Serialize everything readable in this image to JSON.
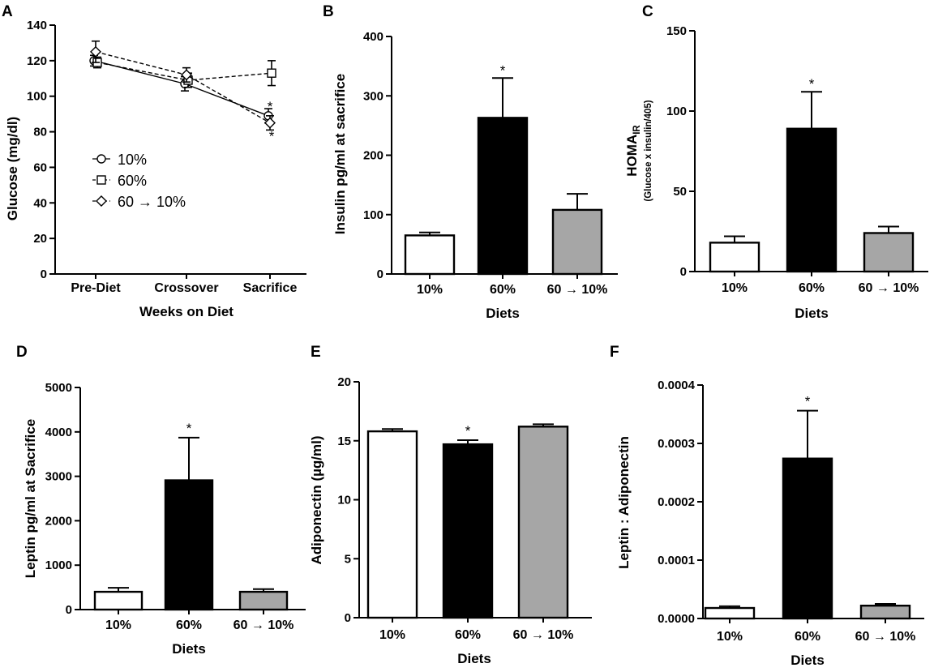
{
  "figure": {
    "panels": [
      {
        "label": "A",
        "kind": "line",
        "ylabel": "Glucose (mg/dl)",
        "xlabel": "Weeks on Diet",
        "ylim": [
          0,
          140
        ],
        "yticks": [
          "0",
          "20",
          "40",
          "60",
          "80",
          "100",
          "120",
          "140"
        ],
        "categories": [
          "Pre-Diet",
          "Crossover",
          "Sacrifice"
        ],
        "annotations": [
          "*",
          "*"
        ]
      },
      {
        "label": "B",
        "kind": "bar",
        "ylabel": "Insulin pg/ml at sacrifice",
        "xlabel": "Diets",
        "ylim": [
          0,
          400
        ],
        "yticks": [
          "0",
          "100",
          "200",
          "300",
          "400"
        ],
        "categories": [
          "10%",
          "60%",
          "60 → 10%"
        ],
        "annotation": "*"
      },
      {
        "label": "C",
        "kind": "bar",
        "ylabel_main": "HOMA",
        "ylabel_sub": "IR",
        "ylabel_paren": "(Glucose x insulin/405)",
        "xlabel": "Diets",
        "ylim": [
          0,
          150
        ],
        "yticks": [
          "0",
          "50",
          "100",
          "150"
        ],
        "categories": [
          "10%",
          "60%",
          "60 → 10%"
        ],
        "annotation": "*"
      },
      {
        "label": "D",
        "kind": "bar",
        "ylabel": "Leptin pg/ml at Sacrifice",
        "xlabel": "Diets",
        "ylim": [
          0,
          5000
        ],
        "yticks": [
          "0",
          "1000",
          "2000",
          "3000",
          "4000",
          "5000"
        ],
        "categories": [
          "10%",
          "60%",
          "60 → 10%"
        ],
        "annotation": "*"
      },
      {
        "label": "E",
        "kind": "bar",
        "ylabel": "Adiponectin (µg/ml)",
        "xlabel": "Diets",
        "ylim": [
          0,
          20
        ],
        "yticks": [
          "0",
          "5",
          "10",
          "15",
          "20"
        ],
        "categories": [
          "10%",
          "60%",
          "60 → 10%"
        ],
        "annotation": "*"
      },
      {
        "label": "F",
        "kind": "bar",
        "ylabel": "Leptin : Adiponectin",
        "xlabel": "Diets",
        "ylim": [
          0,
          0.0004
        ],
        "yticks": [
          "0.0000",
          "0.0001",
          "0.0002",
          "0.0003",
          "0.0004"
        ],
        "categories": [
          "10%",
          "60%",
          "60 → 10%"
        ],
        "annotation": "*"
      }
    ]
  },
  "chart_data": [
    {
      "type": "line",
      "panel": "A",
      "title": "",
      "xlabel": "Weeks on Diet",
      "ylabel": "Glucose (mg/dl)",
      "ylim": [
        0,
        140
      ],
      "categories": [
        "Pre-Diet",
        "Crossover",
        "Sacrifice"
      ],
      "series": [
        {
          "name": "10%",
          "marker": "circle",
          "style": "solid",
          "values": [
            120,
            107,
            89
          ],
          "errors": [
            3,
            4,
            4
          ]
        },
        {
          "name": "60%",
          "marker": "square",
          "style": "dashed",
          "values": [
            119,
            109,
            113
          ],
          "errors": [
            3,
            4,
            7
          ]
        },
        {
          "name": "60 → 10%",
          "marker": "diamond",
          "style": "dashed",
          "values": [
            125,
            112,
            85
          ],
          "errors": [
            6,
            4,
            4
          ]
        }
      ],
      "annotations": [
        {
          "text": "*",
          "category": "Sacrifice",
          "series": "10%"
        },
        {
          "text": "*",
          "category": "Sacrifice",
          "series": "60 → 10%"
        }
      ],
      "legend_position": "center-left"
    },
    {
      "type": "bar",
      "panel": "B",
      "xlabel": "Diets",
      "ylabel": "Insulin pg/ml at sacrifice",
      "ylim": [
        0,
        400
      ],
      "categories": [
        "10%",
        "60%",
        "60 → 10%"
      ],
      "values": [
        65,
        263,
        108
      ],
      "errors": [
        5,
        67,
        27
      ],
      "colors": [
        "#ffffff",
        "#000000",
        "#a6a6a6"
      ],
      "annotations": [
        {
          "text": "*",
          "category": "60%"
        }
      ]
    },
    {
      "type": "bar",
      "panel": "C",
      "xlabel": "Diets",
      "ylabel": "HOMA IR (Glucose x insulin/405)",
      "ylim": [
        0,
        150
      ],
      "categories": [
        "10%",
        "60%",
        "60 → 10%"
      ],
      "values": [
        18,
        89,
        24
      ],
      "errors": [
        4,
        23,
        4
      ],
      "colors": [
        "#ffffff",
        "#000000",
        "#a6a6a6"
      ],
      "annotations": [
        {
          "text": "*",
          "category": "60%"
        }
      ]
    },
    {
      "type": "bar",
      "panel": "D",
      "xlabel": "Diets",
      "ylabel": "Leptin pg/ml at Sacrifice",
      "ylim": [
        0,
        5000
      ],
      "categories": [
        "10%",
        "60%",
        "60 → 10%"
      ],
      "values": [
        400,
        2910,
        400
      ],
      "errors": [
        90,
        960,
        60
      ],
      "colors": [
        "#ffffff",
        "#000000",
        "#a6a6a6"
      ],
      "annotations": [
        {
          "text": "*",
          "category": "60%"
        }
      ]
    },
    {
      "type": "bar",
      "panel": "E",
      "xlabel": "Diets",
      "ylabel": "Adiponectin (µg/ml)",
      "ylim": [
        0,
        20
      ],
      "categories": [
        "10%",
        "60%",
        "60 → 10%"
      ],
      "values": [
        15.8,
        14.7,
        16.2
      ],
      "errors": [
        0.2,
        0.35,
        0.2
      ],
      "colors": [
        "#ffffff",
        "#000000",
        "#a6a6a6"
      ],
      "annotations": [
        {
          "text": "*",
          "category": "60%"
        }
      ]
    },
    {
      "type": "bar",
      "panel": "F",
      "xlabel": "Diets",
      "ylabel": "Leptin : Adiponectin",
      "ylim": [
        0,
        0.0004
      ],
      "categories": [
        "10%",
        "60%",
        "60 → 10%"
      ],
      "values": [
        1.8e-05,
        0.000274,
        2.2e-05
      ],
      "errors": [
        3e-06,
        8.2e-05,
        3e-06
      ],
      "colors": [
        "#ffffff",
        "#000000",
        "#a6a6a6"
      ],
      "annotations": [
        {
          "text": "*",
          "category": "60%"
        }
      ]
    }
  ]
}
